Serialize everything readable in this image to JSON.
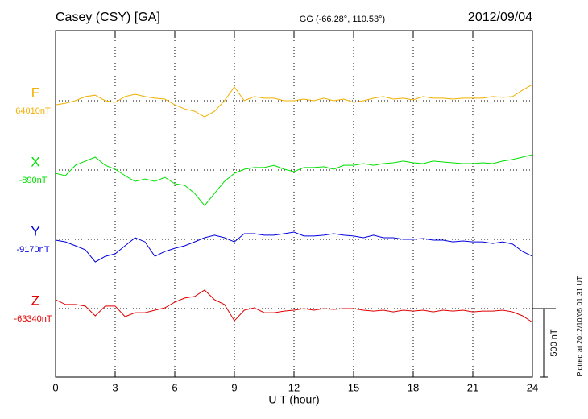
{
  "chart_data": {
    "type": "line",
    "title": "Casey (CSY)  [GA]",
    "subtitle": "GG (-66.28°, 110.53°)",
    "date": "2012/09/04",
    "xlabel": "U T (hour)",
    "note": "Plotted at 2012/10/05 01:31 UT",
    "xlim": [
      0,
      24
    ],
    "xticks": [
      0,
      3,
      6,
      9,
      12,
      15,
      18,
      21,
      24
    ],
    "grid": true,
    "scale_bar": {
      "value": 500,
      "label": "500 nT"
    },
    "x": [
      0,
      0.5,
      1,
      1.5,
      2,
      2.5,
      3,
      3.5,
      4,
      4.5,
      5,
      5.5,
      6,
      6.5,
      7,
      7.5,
      8,
      8.5,
      9,
      9.5,
      10,
      10.5,
      11,
      11.5,
      12,
      12.5,
      13,
      13.5,
      14,
      14.5,
      15,
      15.5,
      16,
      16.5,
      17,
      17.5,
      18,
      18.5,
      19,
      19.5,
      20,
      20.5,
      21,
      21.5,
      22,
      22.5,
      23,
      23.5,
      24
    ],
    "series": [
      {
        "name": "F",
        "color": "#f0b000",
        "baseline": {
          "value": 64010,
          "label": "64010nT"
        },
        "values": [
          63980,
          63992,
          64010,
          64040,
          64050,
          64010,
          63998,
          64040,
          64057,
          64040,
          64028,
          64022,
          63980,
          63950,
          63933,
          63892,
          63933,
          64010,
          64110,
          64010,
          64040,
          64028,
          64028,
          64010,
          64010,
          64022,
          64010,
          64028,
          64010,
          64022,
          63998,
          64010,
          64028,
          64040,
          64022,
          64028,
          64016,
          64040,
          64028,
          64028,
          64022,
          64028,
          64028,
          64028,
          64040,
          64034,
          64040,
          64087,
          64128
        ]
      },
      {
        "name": "X",
        "color": "#00e000",
        "baseline": {
          "value": -890,
          "label": "-890nT"
        },
        "values": [
          -914,
          -931,
          -855,
          -825,
          -796,
          -855,
          -884,
          -931,
          -973,
          -955,
          -973,
          -943,
          -990,
          -1002,
          -1061,
          -1150,
          -1061,
          -973,
          -914,
          -884,
          -872,
          -872,
          -855,
          -884,
          -902,
          -872,
          -872,
          -866,
          -884,
          -855,
          -855,
          -843,
          -855,
          -843,
          -837,
          -825,
          -837,
          -843,
          -825,
          -831,
          -837,
          -843,
          -843,
          -837,
          -843,
          -825,
          -813,
          -796,
          -778
        ]
      },
      {
        "name": "Y",
        "color": "#0000e0",
        "baseline": {
          "value": -9170,
          "label": "-9170nT"
        },
        "values": [
          -9176,
          -9188,
          -9217,
          -9247,
          -9335,
          -9294,
          -9276,
          -9217,
          -9158,
          -9188,
          -9294,
          -9259,
          -9235,
          -9217,
          -9188,
          -9158,
          -9140,
          -9158,
          -9188,
          -9129,
          -9129,
          -9140,
          -9140,
          -9129,
          -9117,
          -9146,
          -9146,
          -9140,
          -9129,
          -9140,
          -9146,
          -9158,
          -9140,
          -9158,
          -9158,
          -9170,
          -9170,
          -9164,
          -9176,
          -9176,
          -9188,
          -9182,
          -9188,
          -9188,
          -9200,
          -9188,
          -9205,
          -9259,
          -9294
        ]
      },
      {
        "name": "Z",
        "color": "#e00000",
        "baseline": {
          "value": -63340,
          "label": "-63340nT"
        },
        "values": [
          -63275,
          -63310,
          -63310,
          -63322,
          -63393,
          -63322,
          -63322,
          -63399,
          -63370,
          -63370,
          -63352,
          -63334,
          -63293,
          -63263,
          -63251,
          -63204,
          -63275,
          -63310,
          -63429,
          -63352,
          -63334,
          -63370,
          -63370,
          -63358,
          -63352,
          -63340,
          -63352,
          -63340,
          -63346,
          -63340,
          -63340,
          -63352,
          -63358,
          -63352,
          -63364,
          -63352,
          -63358,
          -63352,
          -63364,
          -63352,
          -63358,
          -63352,
          -63364,
          -63358,
          -63358,
          -63352,
          -63364,
          -63393,
          -63440
        ]
      }
    ]
  }
}
